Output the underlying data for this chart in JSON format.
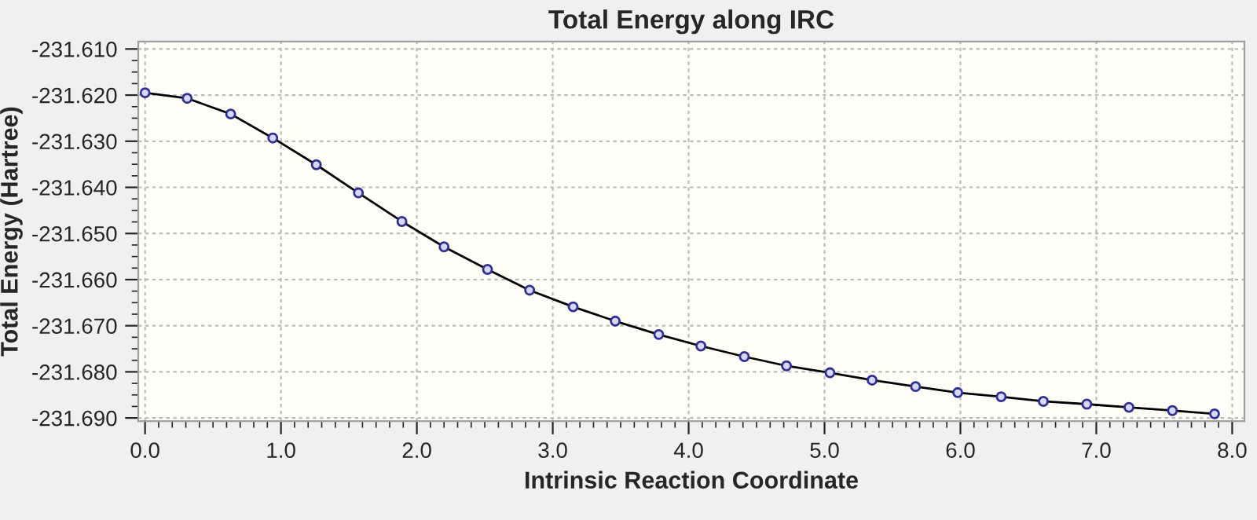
{
  "chart_data": {
    "type": "line",
    "title": "Total Energy along IRC",
    "xlabel": "Intrinsic Reaction Coordinate",
    "ylabel": "Total Energy (Hartree)",
    "x": [
      0,
      0.31,
      0.63,
      0.94,
      1.26,
      1.57,
      1.89,
      2.2,
      2.52,
      2.83,
      3.15,
      3.46,
      3.78,
      4.09,
      4.41,
      4.72,
      5.04,
      5.35,
      5.67,
      5.98,
      6.3,
      6.61,
      6.93,
      7.24,
      7.56,
      7.87
    ],
    "series": [
      {
        "color": "#000000",
        "values": [
          -231.6195,
          -231.6207,
          -231.6241,
          -231.6293,
          -231.6351,
          -231.6412,
          -231.6474,
          -231.6529,
          -231.6578,
          -231.6623,
          -231.6659,
          -231.669,
          -231.6719,
          -231.6744,
          -231.6767,
          -231.6787,
          -231.6802,
          -231.6818,
          -231.6832,
          -231.6845,
          -231.6854,
          -231.6864,
          -231.687,
          -231.6877,
          -231.6884,
          -231.6891
        ]
      }
    ],
    "marker": "circle",
    "line_style": "solid",
    "grid": true,
    "legend": false,
    "xlim": [
      -0.05,
      8.09
    ],
    "ylim": [
      -231.6907,
      -231.6084
    ],
    "xticks": [
      {
        "value": 0,
        "label": "0.0"
      },
      {
        "value": 1,
        "label": "1.0"
      },
      {
        "value": 2,
        "label": "2.0"
      },
      {
        "value": 3,
        "label": "3.0"
      },
      {
        "value": 4,
        "label": "4.0"
      },
      {
        "value": 5,
        "label": "5.0"
      },
      {
        "value": 6,
        "label": "6.0"
      },
      {
        "value": 7,
        "label": "7.0"
      },
      {
        "value": 8,
        "label": "8.0"
      }
    ],
    "yticks": [
      {
        "value": -231.69,
        "label": "-231.690"
      },
      {
        "value": -231.68,
        "label": "-231.680"
      },
      {
        "value": -231.67,
        "label": "-231.670"
      },
      {
        "value": -231.66,
        "label": "-231.660"
      },
      {
        "value": -231.65,
        "label": "-231.650"
      },
      {
        "value": -231.64,
        "label": "-231.640"
      },
      {
        "value": -231.63,
        "label": "-231.630"
      },
      {
        "value": -231.62,
        "label": "-231.620"
      },
      {
        "value": -231.61,
        "label": "-231.610"
      }
    ]
  }
}
